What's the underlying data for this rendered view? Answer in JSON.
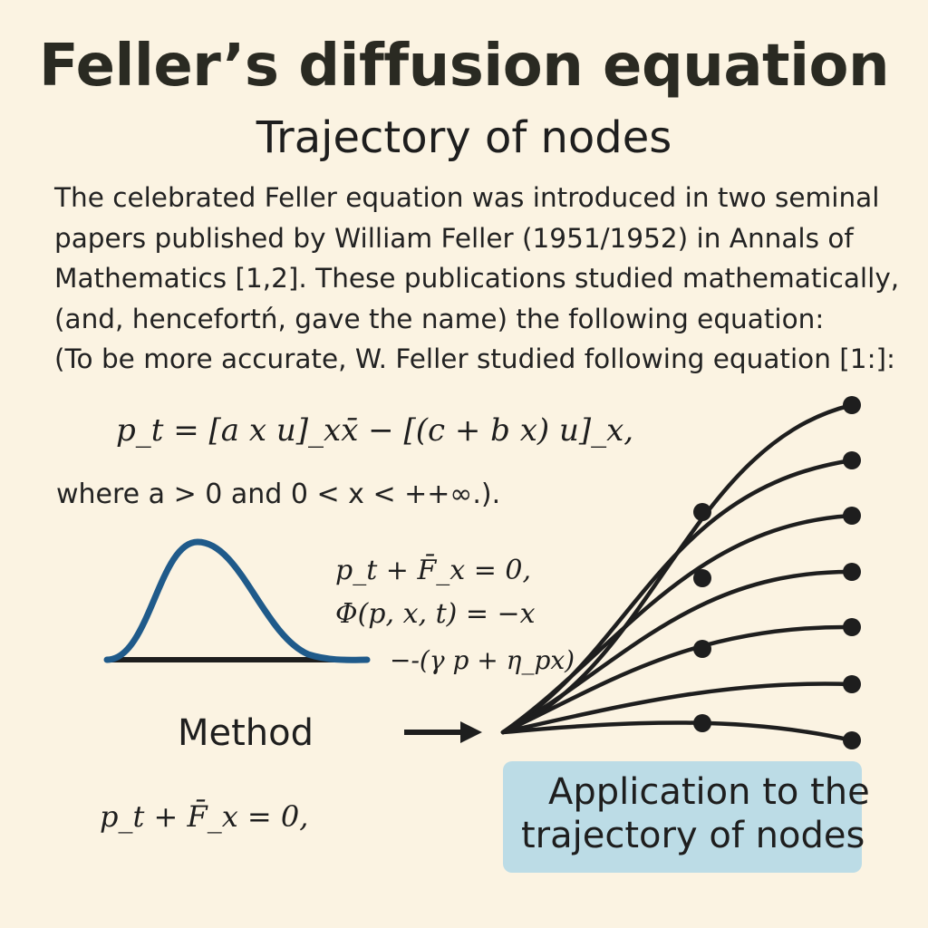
{
  "title": "Feller’s diffusion equation",
  "subtitle": "Trajectory of nodes",
  "paragraph": [
    "The celebrated Feller equation was introduced in two seminal",
    "papers published by William Feller (1951/1952) in Annals of",
    "Mathematics [1,2]. These publications studied mathematically,",
    "(and, hencefortń, gave the name) the following equation:",
    "(To be more accurate, W. Feller studied following equation [1:]:"
  ],
  "equation_main": "p_t = [a x u]_xx̄ − [(c + b x) u]_x,",
  "where_text": "where a > 0 and 0 < x < ++∞.).",
  "equations_side": [
    "p_t + F̄_x = 0,",
    "Φ(p, x, t) = −x",
    "−-(γ p + η_px)"
  ],
  "method_label": "Method",
  "equation_bottom": "p_t + F̄_x = 0,",
  "application_box": {
    "line1": "Application to the",
    "line2": "trajectory of nodes"
  },
  "icons": {
    "bell_curve": "bell-curve-icon",
    "arrow": "arrow-right-icon",
    "trajectory_fan": "trajectory-fan-diagram"
  },
  "colors": {
    "background": "#fbf3e2",
    "curve": "#1f5a8a",
    "box": "#bcdce6",
    "ink": "#1e1e1e"
  }
}
